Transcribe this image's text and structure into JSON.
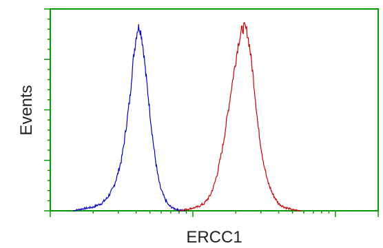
{
  "chart_data": {
    "type": "line",
    "title": "",
    "xlabel": "ERCC1",
    "ylabel": "Events",
    "x_scale": "log",
    "grid": false,
    "legend": "none",
    "series": [
      {
        "color": "#0000cc",
        "points": [
          [
            0.16,
            0.0
          ],
          [
            0.22,
            0.01
          ],
          [
            0.3,
            0.02
          ],
          [
            0.36,
            0.04
          ],
          [
            0.4,
            0.07
          ],
          [
            0.44,
            0.12
          ],
          [
            0.47,
            0.19
          ],
          [
            0.5,
            0.28
          ],
          [
            0.52,
            0.38
          ],
          [
            0.54,
            0.5
          ],
          [
            0.56,
            0.62
          ],
          [
            0.57,
            0.72
          ],
          [
            0.585,
            0.84
          ],
          [
            0.6,
            0.93
          ],
          [
            0.61,
            0.98
          ],
          [
            0.625,
            1.0
          ],
          [
            0.64,
            0.95
          ],
          [
            0.655,
            0.86
          ],
          [
            0.67,
            0.74
          ],
          [
            0.69,
            0.6
          ],
          [
            0.71,
            0.45
          ],
          [
            0.73,
            0.32
          ],
          [
            0.75,
            0.21
          ],
          [
            0.77,
            0.13
          ],
          [
            0.8,
            0.07
          ],
          [
            0.83,
            0.03
          ],
          [
            0.86,
            0.015
          ],
          [
            0.9,
            0.005
          ],
          [
            0.95,
            0.0
          ]
        ]
      },
      {
        "color": "#cc0000",
        "points": [
          [
            0.9,
            0.0
          ],
          [
            0.97,
            0.01
          ],
          [
            1.03,
            0.02
          ],
          [
            1.08,
            0.04
          ],
          [
            1.12,
            0.08
          ],
          [
            1.15,
            0.14
          ],
          [
            1.18,
            0.23
          ],
          [
            1.21,
            0.35
          ],
          [
            1.24,
            0.5
          ],
          [
            1.27,
            0.66
          ],
          [
            1.3,
            0.81
          ],
          [
            1.32,
            0.91
          ],
          [
            1.34,
            0.97
          ],
          [
            1.36,
            1.0
          ],
          [
            1.38,
            0.97
          ],
          [
            1.4,
            0.88
          ],
          [
            1.42,
            0.75
          ],
          [
            1.44,
            0.6
          ],
          [
            1.46,
            0.44
          ],
          [
            1.49,
            0.29
          ],
          [
            1.52,
            0.17
          ],
          [
            1.56,
            0.09
          ],
          [
            1.6,
            0.04
          ],
          [
            1.64,
            0.02
          ],
          [
            1.7,
            0.005
          ],
          [
            1.76,
            0.0
          ]
        ]
      }
    ]
  }
}
